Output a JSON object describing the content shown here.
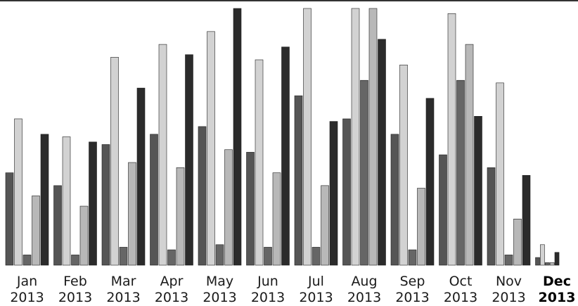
{
  "chart_data": {
    "type": "bar",
    "title": "",
    "xlabel": "",
    "ylabel": "",
    "grid": false,
    "legend": "none",
    "ylim": [
      0,
      100
    ],
    "categories": [
      {
        "month": "Jan",
        "year": "2013",
        "current": false
      },
      {
        "month": "Feb",
        "year": "2013",
        "current": false
      },
      {
        "month": "Mar",
        "year": "2013",
        "current": false
      },
      {
        "month": "Apr",
        "year": "2013",
        "current": false
      },
      {
        "month": "May",
        "year": "2013",
        "current": false
      },
      {
        "month": "Jun",
        "year": "2013",
        "current": false
      },
      {
        "month": "Jul",
        "year": "2013",
        "current": false
      },
      {
        "month": "Aug",
        "year": "2013",
        "current": false
      },
      {
        "month": "Sep",
        "year": "2013",
        "current": false
      },
      {
        "month": "Oct",
        "year": "2013",
        "current": false
      },
      {
        "month": "Nov",
        "year": "2013",
        "current": false
      },
      {
        "month": "Dec",
        "year": "2013",
        "current": true
      }
    ],
    "series": [
      {
        "color": "#555555",
        "values": [
          36,
          31,
          47,
          51,
          54,
          44,
          66,
          57,
          51,
          43,
          38,
          3
        ]
      },
      {
        "color": "#d2d2d2",
        "values": [
          57,
          50,
          81,
          86,
          91,
          80,
          100,
          100,
          78,
          98,
          71,
          8
        ]
      },
      {
        "color": "#666666",
        "values": [
          4,
          4,
          7,
          6,
          8,
          7,
          7,
          72,
          6,
          72,
          4,
          1
        ]
      },
      {
        "color": "#b8b8b8",
        "values": [
          27,
          23,
          40,
          38,
          45,
          36,
          31,
          100,
          30,
          86,
          18,
          1
        ]
      },
      {
        "color": "#2b2b2b",
        "values": [
          51,
          48,
          69,
          82,
          100,
          85,
          56,
          88,
          65,
          58,
          35,
          5
        ]
      }
    ]
  }
}
